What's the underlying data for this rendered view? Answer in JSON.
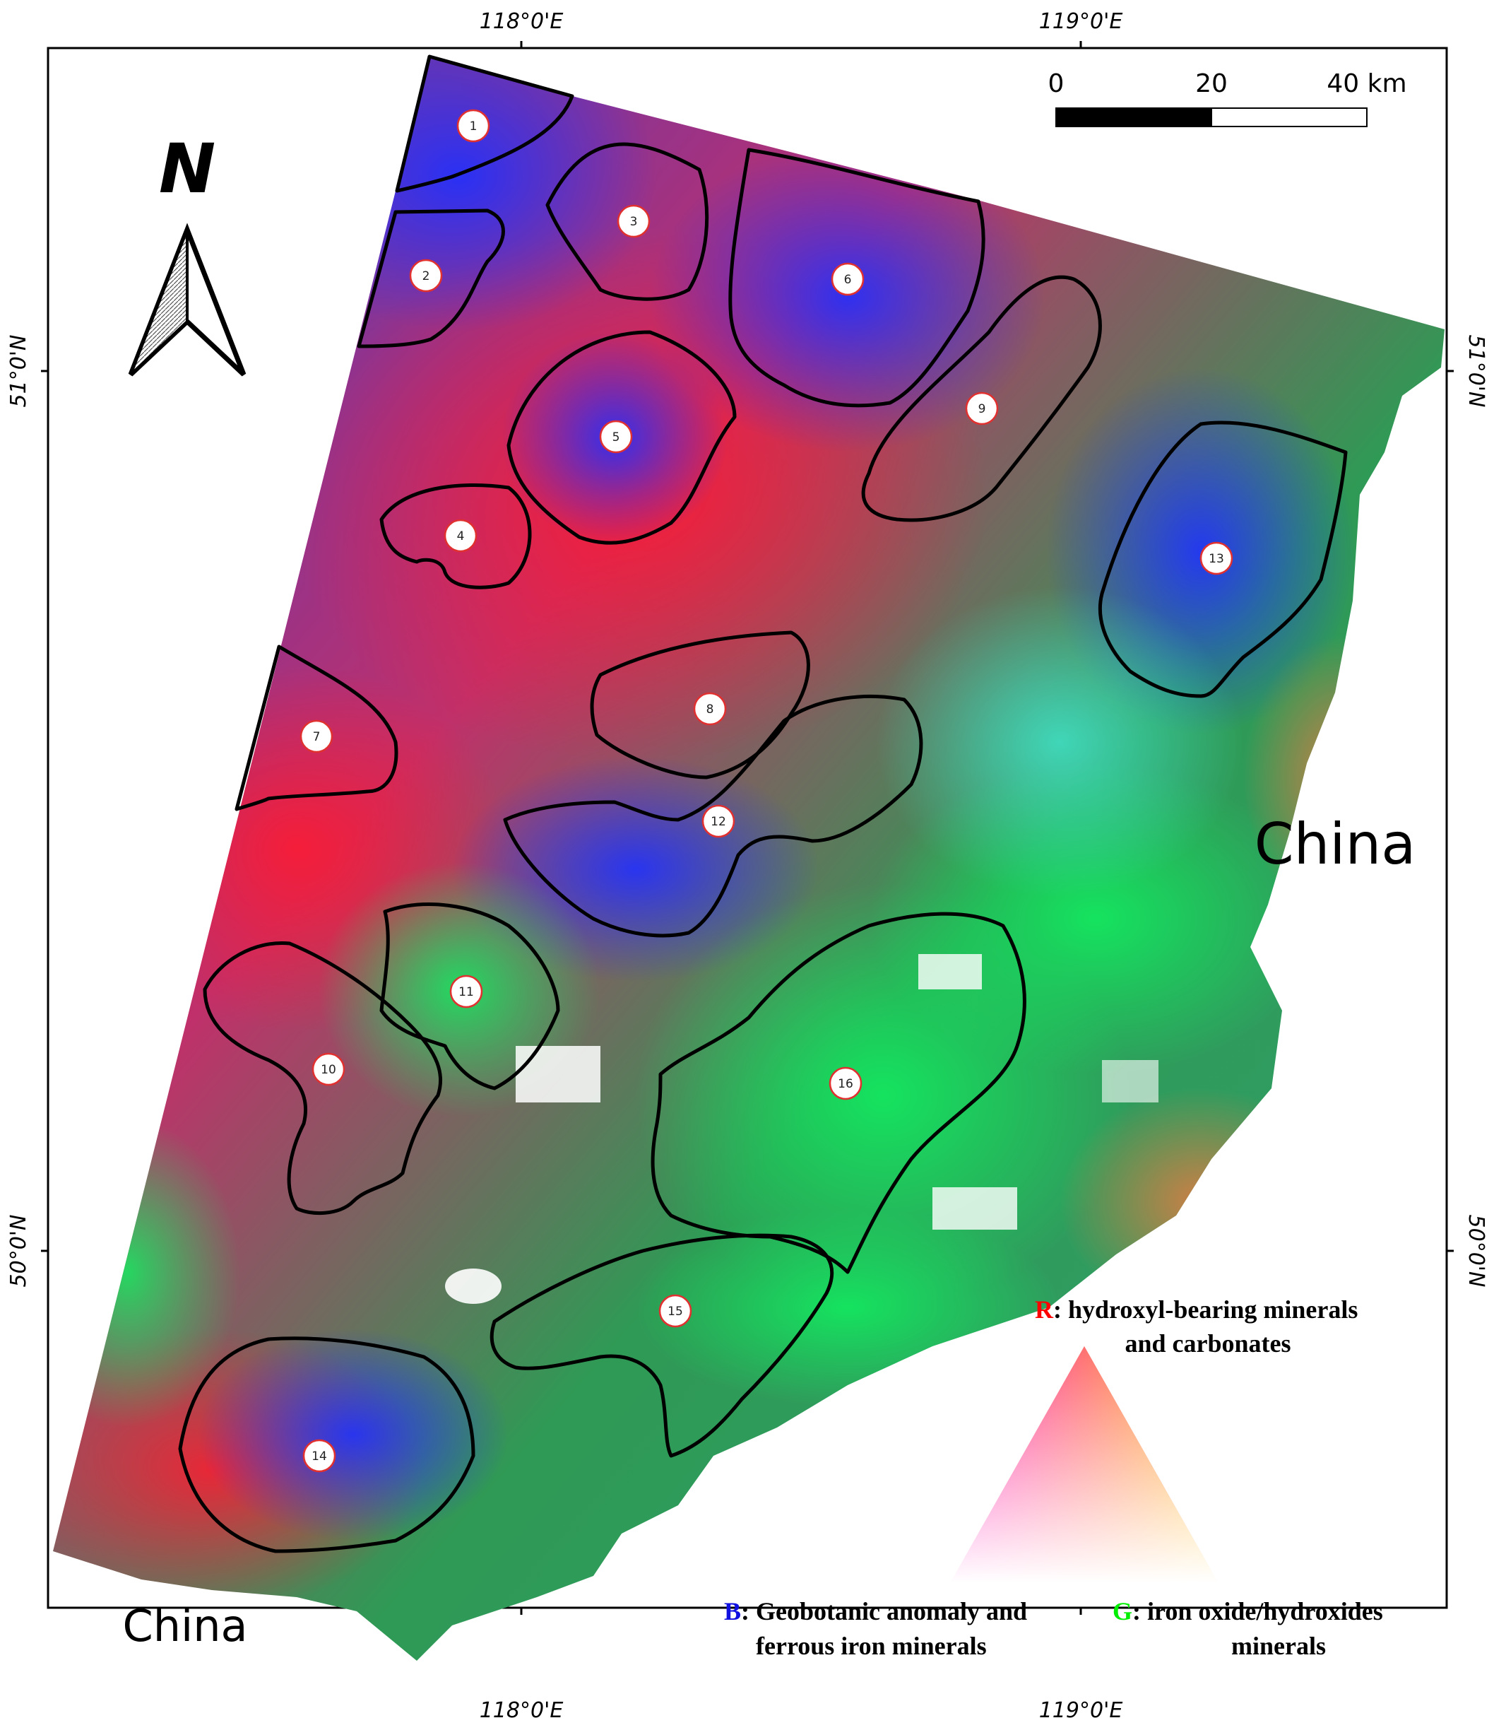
{
  "graticule": {
    "top": [
      "118°0'E",
      "119°0'E"
    ],
    "bottom": [
      "118°0'E",
      "119°0'E"
    ],
    "left": [
      "51°0'N",
      "50°0'N"
    ],
    "right": [
      "51°0'N",
      "50°0'N"
    ]
  },
  "north_arrow": {
    "label": "N"
  },
  "scale_bar": {
    "ticks": [
      "0",
      "20",
      "40 km"
    ]
  },
  "countries": {
    "east": "China",
    "southwest": "China"
  },
  "zones": [
    "1",
    "2",
    "3",
    "4",
    "5",
    "6",
    "7",
    "8",
    "9",
    "10",
    "11",
    "12",
    "13",
    "14",
    "15",
    "16"
  ],
  "legend": {
    "red": {
      "key": "R",
      "line1": ": hydroxyl-bearing minerals",
      "line2": "and carbonates",
      "color": "#ff0000"
    },
    "blue": {
      "key": "B",
      "line1": ": Geobotanic anomaly and",
      "line2": "ferrous iron minerals",
      "color": "#1010e0"
    },
    "green": {
      "key": "G",
      "line1": ": iron oxide/hydroxides",
      "line2": "minerals",
      "color": "#00ee00"
    }
  },
  "colors": {
    "frame": "#000000",
    "zone_outline": "#000000"
  }
}
